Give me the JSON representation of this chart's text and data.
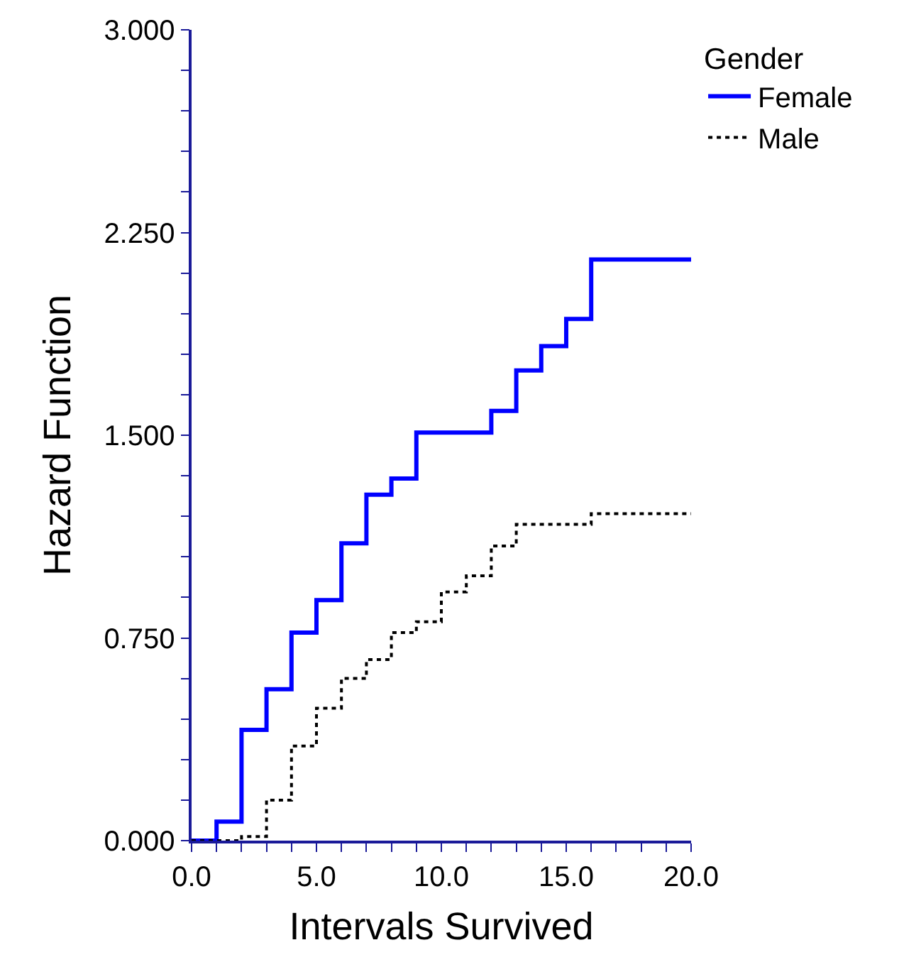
{
  "chart_data": {
    "type": "step",
    "xlabel": "Intervals Survived",
    "ylabel": "Hazard Function",
    "legend_title": "Gender",
    "legend": "top right",
    "xlim": [
      0,
      20
    ],
    "ylim": [
      0,
      3
    ],
    "xticks": [
      {
        "value": 0,
        "label": "0.0"
      },
      {
        "value": 1,
        "label": null
      },
      {
        "value": 2,
        "label": null
      },
      {
        "value": 3,
        "label": null
      },
      {
        "value": 4,
        "label": null
      },
      {
        "value": 5,
        "label": "5.0"
      },
      {
        "value": 6,
        "label": null
      },
      {
        "value": 7,
        "label": null
      },
      {
        "value": 8,
        "label": null
      },
      {
        "value": 9,
        "label": null
      },
      {
        "value": 10,
        "label": "10.0"
      },
      {
        "value": 11,
        "label": null
      },
      {
        "value": 12,
        "label": null
      },
      {
        "value": 13,
        "label": null
      },
      {
        "value": 14,
        "label": null
      },
      {
        "value": 15,
        "label": "15.0"
      },
      {
        "value": 16,
        "label": null
      },
      {
        "value": 17,
        "label": null
      },
      {
        "value": 18,
        "label": null
      },
      {
        "value": 19,
        "label": null
      },
      {
        "value": 20,
        "label": "20.0"
      }
    ],
    "yticks": [
      {
        "value": 0,
        "label": "0.000"
      },
      {
        "value": 0.15,
        "label": null
      },
      {
        "value": 0.3,
        "label": null
      },
      {
        "value": 0.45,
        "label": null
      },
      {
        "value": 0.6,
        "label": null
      },
      {
        "value": 0.75,
        "label": "0.750"
      },
      {
        "value": 0.9,
        "label": null
      },
      {
        "value": 1.05,
        "label": null
      },
      {
        "value": 1.2,
        "label": null
      },
      {
        "value": 1.35,
        "label": null
      },
      {
        "value": 1.5,
        "label": "1.500"
      },
      {
        "value": 1.65,
        "label": null
      },
      {
        "value": 1.8,
        "label": null
      },
      {
        "value": 1.95,
        "label": null
      },
      {
        "value": 2.1,
        "label": null
      },
      {
        "value": 2.25,
        "label": "2.250"
      },
      {
        "value": 2.4,
        "label": null
      },
      {
        "value": 2.55,
        "label": null
      },
      {
        "value": 2.7,
        "label": null
      },
      {
        "value": 2.85,
        "label": null
      },
      {
        "value": 3,
        "label": "3.000"
      }
    ],
    "series": [
      {
        "name": "Female",
        "color": "#0000ff",
        "line_style": "solid",
        "x": [
          0,
          1,
          2,
          3,
          4,
          5,
          6,
          7,
          8,
          9,
          12,
          13,
          14,
          15,
          16,
          20
        ],
        "values": [
          0,
          0.07,
          0.41,
          0.56,
          0.77,
          0.89,
          1.1,
          1.28,
          1.34,
          1.51,
          1.59,
          1.74,
          1.83,
          1.93,
          2.15,
          2.15
        ]
      },
      {
        "name": "Male",
        "color": "#000000",
        "line_style": "dotted",
        "x": [
          0,
          2,
          3,
          4,
          5,
          6,
          7,
          8,
          9,
          10,
          11,
          12,
          13,
          16,
          20
        ],
        "values": [
          0,
          0.015,
          0.15,
          0.35,
          0.49,
          0.6,
          0.67,
          0.77,
          0.81,
          0.92,
          0.98,
          1.09,
          1.17,
          1.21,
          1.21
        ]
      }
    ]
  }
}
